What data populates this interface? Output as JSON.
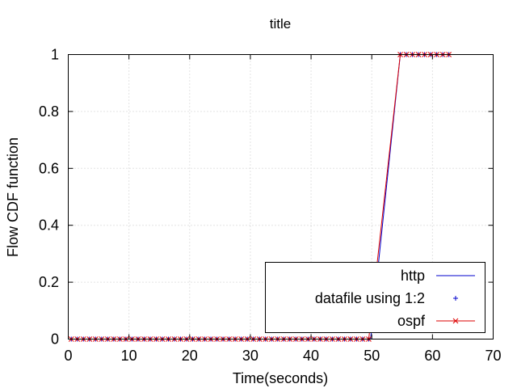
{
  "chart_data": {
    "type": "line",
    "title": "title",
    "xlabel": "Time(seconds)",
    "ylabel": "Flow CDF function",
    "xlim": [
      0,
      70
    ],
    "ylim": [
      0,
      1
    ],
    "xticks": [
      0,
      10,
      20,
      30,
      40,
      50,
      60,
      70
    ],
    "yticks": [
      0,
      0.2,
      0.4,
      0.6,
      0.8,
      1
    ],
    "ytick_labels": [
      "0",
      "0.2",
      "0.4",
      "0.6",
      "0.8",
      "1"
    ],
    "grid": true,
    "legend_position": "bottom-right",
    "series": [
      {
        "name": "http",
        "style": "line",
        "color": "#0000cc",
        "x": [
          0.5,
          49.8,
          54.7,
          62.8
        ],
        "y": [
          0,
          0,
          1,
          1
        ]
      },
      {
        "name": "datafile using 1:2",
        "style": "plus",
        "color": "#0000cc",
        "x": [
          0.5,
          1.5,
          2.5,
          3.5,
          4.5,
          5.5,
          6.5,
          7.5,
          8.5,
          9.5,
          10.5,
          11.5,
          12.5,
          13.5,
          14.5,
          15.5,
          16.5,
          17.5,
          18.5,
          19.5,
          20.5,
          21.5,
          22.5,
          23.5,
          24.5,
          25.5,
          26.5,
          27.5,
          28.5,
          29.5,
          30.5,
          31.5,
          32.5,
          33.5,
          34.5,
          35.5,
          36.5,
          37.5,
          38.5,
          39.5,
          40.5,
          41.5,
          42.5,
          43.5,
          44.5,
          45.5,
          46.5,
          47.5,
          48.5,
          49.5,
          54.7,
          55.7,
          56.7,
          57.7,
          58.7,
          59.7,
          60.7,
          61.7,
          62.7
        ],
        "y": [
          0,
          0,
          0,
          0,
          0,
          0,
          0,
          0,
          0,
          0,
          0,
          0,
          0,
          0,
          0,
          0,
          0,
          0,
          0,
          0,
          0,
          0,
          0,
          0,
          0,
          0,
          0,
          0,
          0,
          0,
          0,
          0,
          0,
          0,
          0,
          0,
          0,
          0,
          0,
          0,
          0,
          0,
          0,
          0,
          0,
          0,
          0,
          0,
          0,
          0,
          1,
          1,
          1,
          1,
          1,
          1,
          1,
          1,
          1
        ]
      },
      {
        "name": "ospf",
        "style": "line-cross",
        "color": "#dd0000",
        "x": [
          0.5,
          1.5,
          2.5,
          3.5,
          4.5,
          5.5,
          6.5,
          7.5,
          8.5,
          9.5,
          10.5,
          11.5,
          12.5,
          13.5,
          14.5,
          15.5,
          16.5,
          17.5,
          18.5,
          19.5,
          20.5,
          21.5,
          22.5,
          23.5,
          24.5,
          25.5,
          26.5,
          27.5,
          28.5,
          29.5,
          30.5,
          31.5,
          32.5,
          33.5,
          34.5,
          35.5,
          36.5,
          37.5,
          38.5,
          39.5,
          40.5,
          41.5,
          42.5,
          43.5,
          44.5,
          45.5,
          46.5,
          47.5,
          48.5,
          49.5,
          54.7,
          55.7,
          56.7,
          57.7,
          58.7,
          59.7,
          60.7,
          61.7,
          62.7
        ],
        "y": [
          0,
          0,
          0,
          0,
          0,
          0,
          0,
          0,
          0,
          0,
          0,
          0,
          0,
          0,
          0,
          0,
          0,
          0,
          0,
          0,
          0,
          0,
          0,
          0,
          0,
          0,
          0,
          0,
          0,
          0,
          0,
          0,
          0,
          0,
          0,
          0,
          0,
          0,
          0,
          0,
          0,
          0,
          0,
          0,
          0,
          0,
          0,
          0,
          0,
          0,
          1,
          1,
          1,
          1,
          1,
          1,
          1,
          1,
          1
        ]
      }
    ]
  }
}
